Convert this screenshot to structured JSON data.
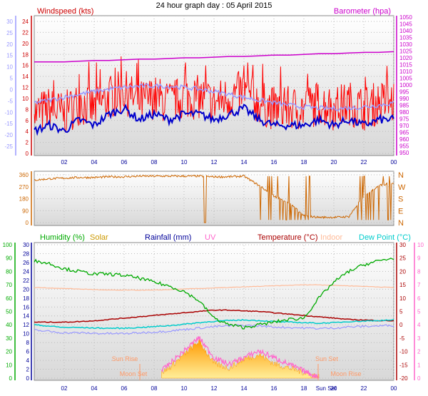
{
  "title": "24 hour graph day : 05 April 2015",
  "colors": {
    "windspeed": "#ff0000",
    "windavg": "#0000cc",
    "windaxis": "#9999ff",
    "barometer": "#cc00cc",
    "direction": "#cc6600",
    "humidity": "#00aa00",
    "solar": "#ffaa00",
    "rainfall": "#000099",
    "uv": "#ff66cc",
    "temperature": "#aa0000",
    "indoor": "#ffbb99",
    "dewpoint": "#00cccc",
    "lowtemp": "#9999ff"
  },
  "panel1": {
    "left_title": "Windspeed (kts)",
    "right_title": "Barometer (hpa)",
    "far_left_ticks": [
      "30",
      "25",
      "20",
      "15",
      "10",
      "5",
      "0",
      "-5",
      "-10",
      "-15",
      "-20",
      "-25"
    ],
    "left_ticks": [
      "24",
      "22",
      "20",
      "18",
      "16",
      "14",
      "12",
      "10",
      "8",
      "6",
      "4",
      "2",
      "0"
    ],
    "right_ticks": [
      "1050",
      "1045",
      "1040",
      "1035",
      "1030",
      "1025",
      "1020",
      "1015",
      "1010",
      "1005",
      "1000",
      "995",
      "990",
      "985",
      "980",
      "975",
      "970",
      "965",
      "960",
      "955",
      "950"
    ]
  },
  "panel2": {
    "left_ticks": [
      "360",
      "270",
      "180",
      "90",
      "0"
    ],
    "right_ticks": [
      "N",
      "W",
      "S",
      "E",
      "N"
    ]
  },
  "panel3": {
    "legend": {
      "humidity": "Humidity (%)",
      "solar": "Solar",
      "rainfall": "Rainfall (mm)",
      "uv": "UV",
      "temperature": "Temperature (°C)",
      "indoor": "Indoor",
      "dewpoint": "Dew Point (°C)"
    },
    "hum_ticks": [
      "100",
      "90",
      "80",
      "70",
      "60",
      "50",
      "40",
      "30",
      "20",
      "10",
      "0"
    ],
    "rain_ticks": [
      "30",
      "28",
      "26",
      "24",
      "22",
      "20",
      "18",
      "16",
      "14",
      "12",
      "10",
      "8",
      "6",
      "4",
      "2",
      "0"
    ],
    "temp_ticks": [
      "30",
      "25",
      "20",
      "15",
      "10",
      "5",
      "0",
      "-5",
      "-10",
      "-15",
      "-20"
    ],
    "uv_ticks": [
      "10",
      "9",
      "8",
      "7",
      "6",
      "5",
      "4",
      "3",
      "2",
      "1",
      "0"
    ],
    "annotations": {
      "sun_rise": "Sun Rise",
      "moon_set": "Moon Set",
      "sun_set": "Sun Set",
      "moon_rise": "Moon Rise",
      "sun_set_bottom": "Sun Set"
    }
  },
  "x_ticks": [
    "02",
    "04",
    "06",
    "08",
    "10",
    "12",
    "14",
    "16",
    "18",
    "20",
    "22",
    "00"
  ],
  "chart_data": [
    {
      "type": "line",
      "title": "24 hour graph day : 05 April 2015",
      "x": [
        0,
        1,
        2,
        3,
        4,
        5,
        6,
        7,
        8,
        9,
        10,
        11,
        12,
        13,
        14,
        15,
        16,
        17,
        18,
        19,
        20,
        21,
        22,
        23,
        24
      ],
      "series": [
        {
          "name": "Windspeed (kts)",
          "axis": "left",
          "values": [
            7,
            8,
            7,
            9,
            8,
            10,
            11,
            9,
            10,
            9,
            10,
            10,
            9,
            10,
            11,
            9,
            8,
            8,
            8,
            9,
            8,
            9,
            8,
            9,
            9
          ]
        },
        {
          "name": "Barometer (hpa)",
          "axis": "right",
          "values": [
            1017,
            1017,
            1017,
            1017.5,
            1018,
            1018,
            1018.5,
            1019,
            1019,
            1019.5,
            1020,
            1020,
            1020.5,
            1021,
            1021,
            1021.5,
            1022,
            1022,
            1022.5,
            1023,
            1023,
            1023.5,
            1024,
            1024,
            1024.5
          ]
        }
      ],
      "ylim_left": [
        0,
        25
      ],
      "ylim_right": [
        950,
        1050
      ]
    },
    {
      "type": "line",
      "series": [
        {
          "name": "Wind direction",
          "values": [
            320,
            330,
            335,
            340,
            340,
            345,
            345,
            350,
            350,
            350,
            350,
            350,
            345,
            345,
            350,
            280,
            200,
            150,
            50,
            40,
            40,
            45,
            200,
            280,
            300
          ]
        }
      ],
      "ylim": [
        0,
        360
      ]
    },
    {
      "type": "line",
      "series": [
        {
          "name": "Humidity (%)",
          "axis": "humidity",
          "values": [
            88,
            86,
            82,
            80,
            78,
            78,
            77,
            75,
            72,
            69,
            65,
            58,
            45,
            40,
            38,
            40,
            42,
            44,
            45,
            60,
            72,
            80,
            85,
            88,
            90
          ]
        },
        {
          "name": "Temperature (°C)",
          "axis": "temperature",
          "values": [
            1,
            1,
            1,
            1.2,
            1.5,
            2,
            2.5,
            3,
            3.5,
            4,
            4.5,
            5,
            5.5,
            5.5,
            5.2,
            5,
            4.5,
            4,
            3.5,
            3,
            2.5,
            2,
            1.8,
            1.6,
            1.5
          ]
        },
        {
          "name": "Dew Point (°C)",
          "axis": "temperature",
          "values": [
            0,
            -0.5,
            -1,
            -1,
            -1.2,
            -1.3,
            -1.3,
            -1,
            -0.7,
            -0.3,
            0.2,
            0.8,
            1.3,
            1.6,
            1.8,
            1.6,
            1.2,
            1,
            0.8,
            0.6,
            0.8,
            1.2,
            1.4,
            1.6,
            1.8
          ]
        },
        {
          "name": "Indoor",
          "axis": "temperature",
          "values": [
            14,
            13.8,
            13.6,
            13.4,
            13.2,
            13,
            13,
            13,
            13,
            13.2,
            13.4,
            13.6,
            13.8,
            14,
            14.2,
            14.4,
            14.6,
            14.8,
            15,
            15,
            14.8,
            14.6,
            14.4,
            14.2,
            14
          ]
        },
        {
          "name": "Solar",
          "axis": "rainfall",
          "values": [
            0,
            0,
            0,
            0,
            0,
            0,
            0,
            0,
            0,
            2,
            5,
            8,
            3,
            2,
            4,
            5,
            3,
            2,
            1,
            0,
            0,
            0,
            0,
            0,
            0
          ]
        },
        {
          "name": "UV",
          "axis": "uv",
          "values": [
            0,
            0,
            0,
            0,
            0,
            0,
            0,
            0,
            0,
            1,
            2,
            3,
            1.5,
            1,
            1.5,
            2,
            1.5,
            1,
            0.5,
            0,
            0,
            0,
            0,
            0,
            0
          ]
        }
      ]
    }
  ]
}
